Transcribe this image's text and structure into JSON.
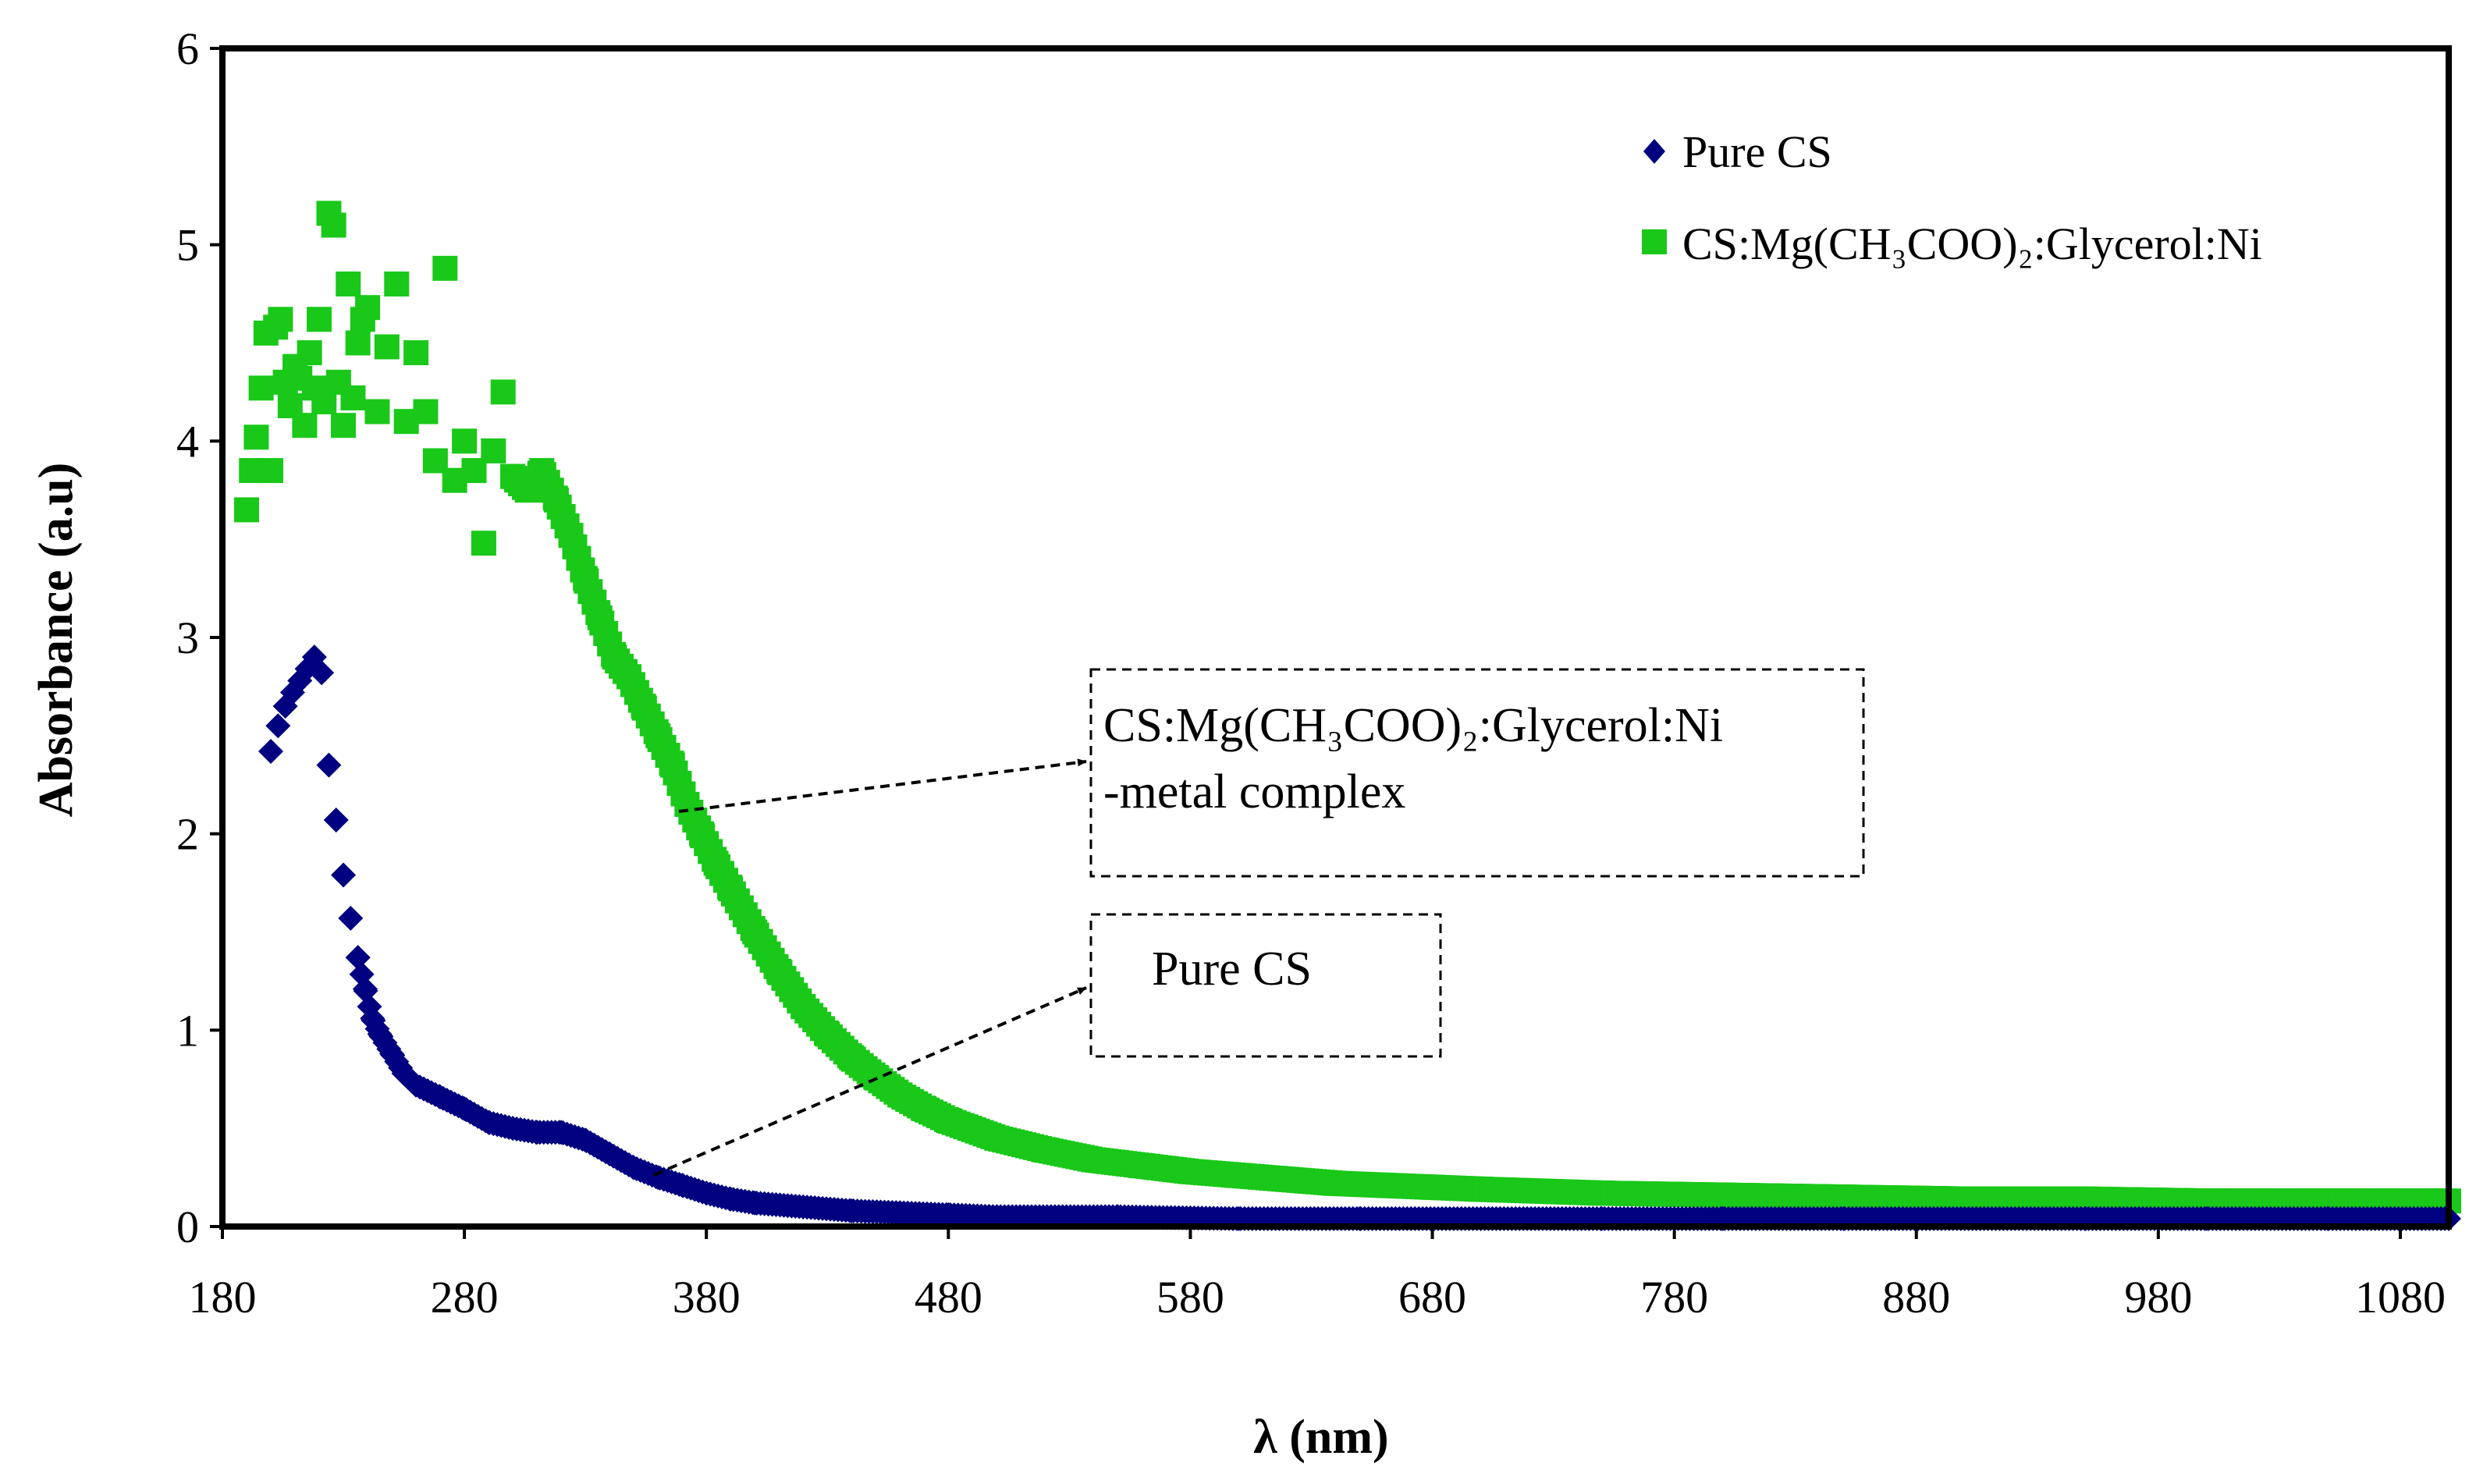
{
  "chart_data": {
    "type": "scatter",
    "title": "",
    "xlabel": "λ (nm)",
    "ylabel": "Absorbance (a.u)",
    "xlim": [
      180,
      1100
    ],
    "ylim": [
      0,
      6
    ],
    "xticks": [
      "180",
      "280",
      "380",
      "480",
      "580",
      "680",
      "780",
      "880",
      "980",
      "1080"
    ],
    "yticks": [
      "0",
      "1",
      "2",
      "3",
      "4",
      "5",
      "6"
    ],
    "grid": false,
    "legend_position": "top-right",
    "series": [
      {
        "name": "Pure CS",
        "marker": "diamond",
        "color": "#000080",
        "x": [
          200,
          203,
          206,
          209,
          212,
          215,
          218,
          221,
          224,
          227,
          230,
          233,
          236,
          239,
          242,
          245,
          250,
          255,
          260,
          270,
          280,
          290,
          300,
          310,
          320,
          330,
          340,
          350,
          360,
          370,
          380,
          390,
          400,
          420,
          440,
          460,
          480,
          500,
          550,
          600,
          650,
          700,
          750,
          800,
          850,
          900,
          950,
          1000,
          1050,
          1100
        ],
        "values": [
          2.42,
          2.55,
          2.65,
          2.72,
          2.78,
          2.84,
          2.9,
          2.82,
          2.35,
          2.07,
          1.79,
          1.57,
          1.37,
          1.21,
          1.06,
          0.98,
          0.88,
          0.78,
          0.72,
          0.66,
          0.6,
          0.53,
          0.5,
          0.48,
          0.48,
          0.44,
          0.37,
          0.3,
          0.25,
          0.21,
          0.17,
          0.14,
          0.12,
          0.1,
          0.08,
          0.07,
          0.06,
          0.05,
          0.05,
          0.04,
          0.04,
          0.04,
          0.04,
          0.04,
          0.04,
          0.04,
          0.04,
          0.04,
          0.04,
          0.04
        ]
      },
      {
        "name": "CS:Mg(CH₃COO)₂:Glycerol:Ni",
        "marker": "square",
        "color": "#19C819",
        "x": [
          190,
          192,
          194,
          196,
          198,
          200,
          202,
          204,
          206,
          208,
          210,
          212,
          214,
          216,
          218,
          220,
          222,
          224,
          226,
          228,
          230,
          232,
          234,
          236,
          238,
          240,
          244,
          248,
          252,
          256,
          260,
          264,
          268,
          272,
          276,
          280,
          284,
          288,
          292,
          296,
          300,
          306,
          312,
          318,
          324,
          330,
          336,
          342,
          348,
          354,
          360,
          366,
          372,
          378,
          384,
          390,
          400,
          410,
          420,
          430,
          440,
          450,
          460,
          470,
          480,
          500,
          520,
          540,
          560,
          580,
          600,
          620,
          640,
          660,
          680,
          700,
          750,
          800,
          850,
          900,
          950,
          1000,
          1050,
          1100
        ],
        "values": [
          3.65,
          3.85,
          4.02,
          4.27,
          4.55,
          3.85,
          4.58,
          4.62,
          4.3,
          4.18,
          4.38,
          4.32,
          4.08,
          4.45,
          4.27,
          4.62,
          4.2,
          5.16,
          5.1,
          4.3,
          4.08,
          4.8,
          4.22,
          4.5,
          4.62,
          4.68,
          4.15,
          4.48,
          4.8,
          4.1,
          4.45,
          4.15,
          3.9,
          4.88,
          3.8,
          4.0,
          3.85,
          3.48,
          3.95,
          4.25,
          3.82,
          3.75,
          3.85,
          3.7,
          3.52,
          3.3,
          3.1,
          2.9,
          2.8,
          2.65,
          2.5,
          2.35,
          2.15,
          2.0,
          1.85,
          1.72,
          1.5,
          1.3,
          1.12,
          0.98,
          0.86,
          0.76,
          0.67,
          0.6,
          0.54,
          0.45,
          0.39,
          0.34,
          0.31,
          0.28,
          0.26,
          0.24,
          0.22,
          0.21,
          0.2,
          0.19,
          0.17,
          0.16,
          0.15,
          0.14,
          0.14,
          0.13,
          0.13,
          0.13
        ]
      }
    ],
    "annotations": [
      {
        "lines": [
          "CS:Mg(CH₃COO)₂:Glycerol:Ni",
          "-metal complex"
        ],
        "points_to": "CS:Mg(CH₃COO)₂:Glycerol:Ni"
      },
      {
        "lines": [
          "Pure CS"
        ],
        "points_to": "Pure CS"
      }
    ]
  }
}
